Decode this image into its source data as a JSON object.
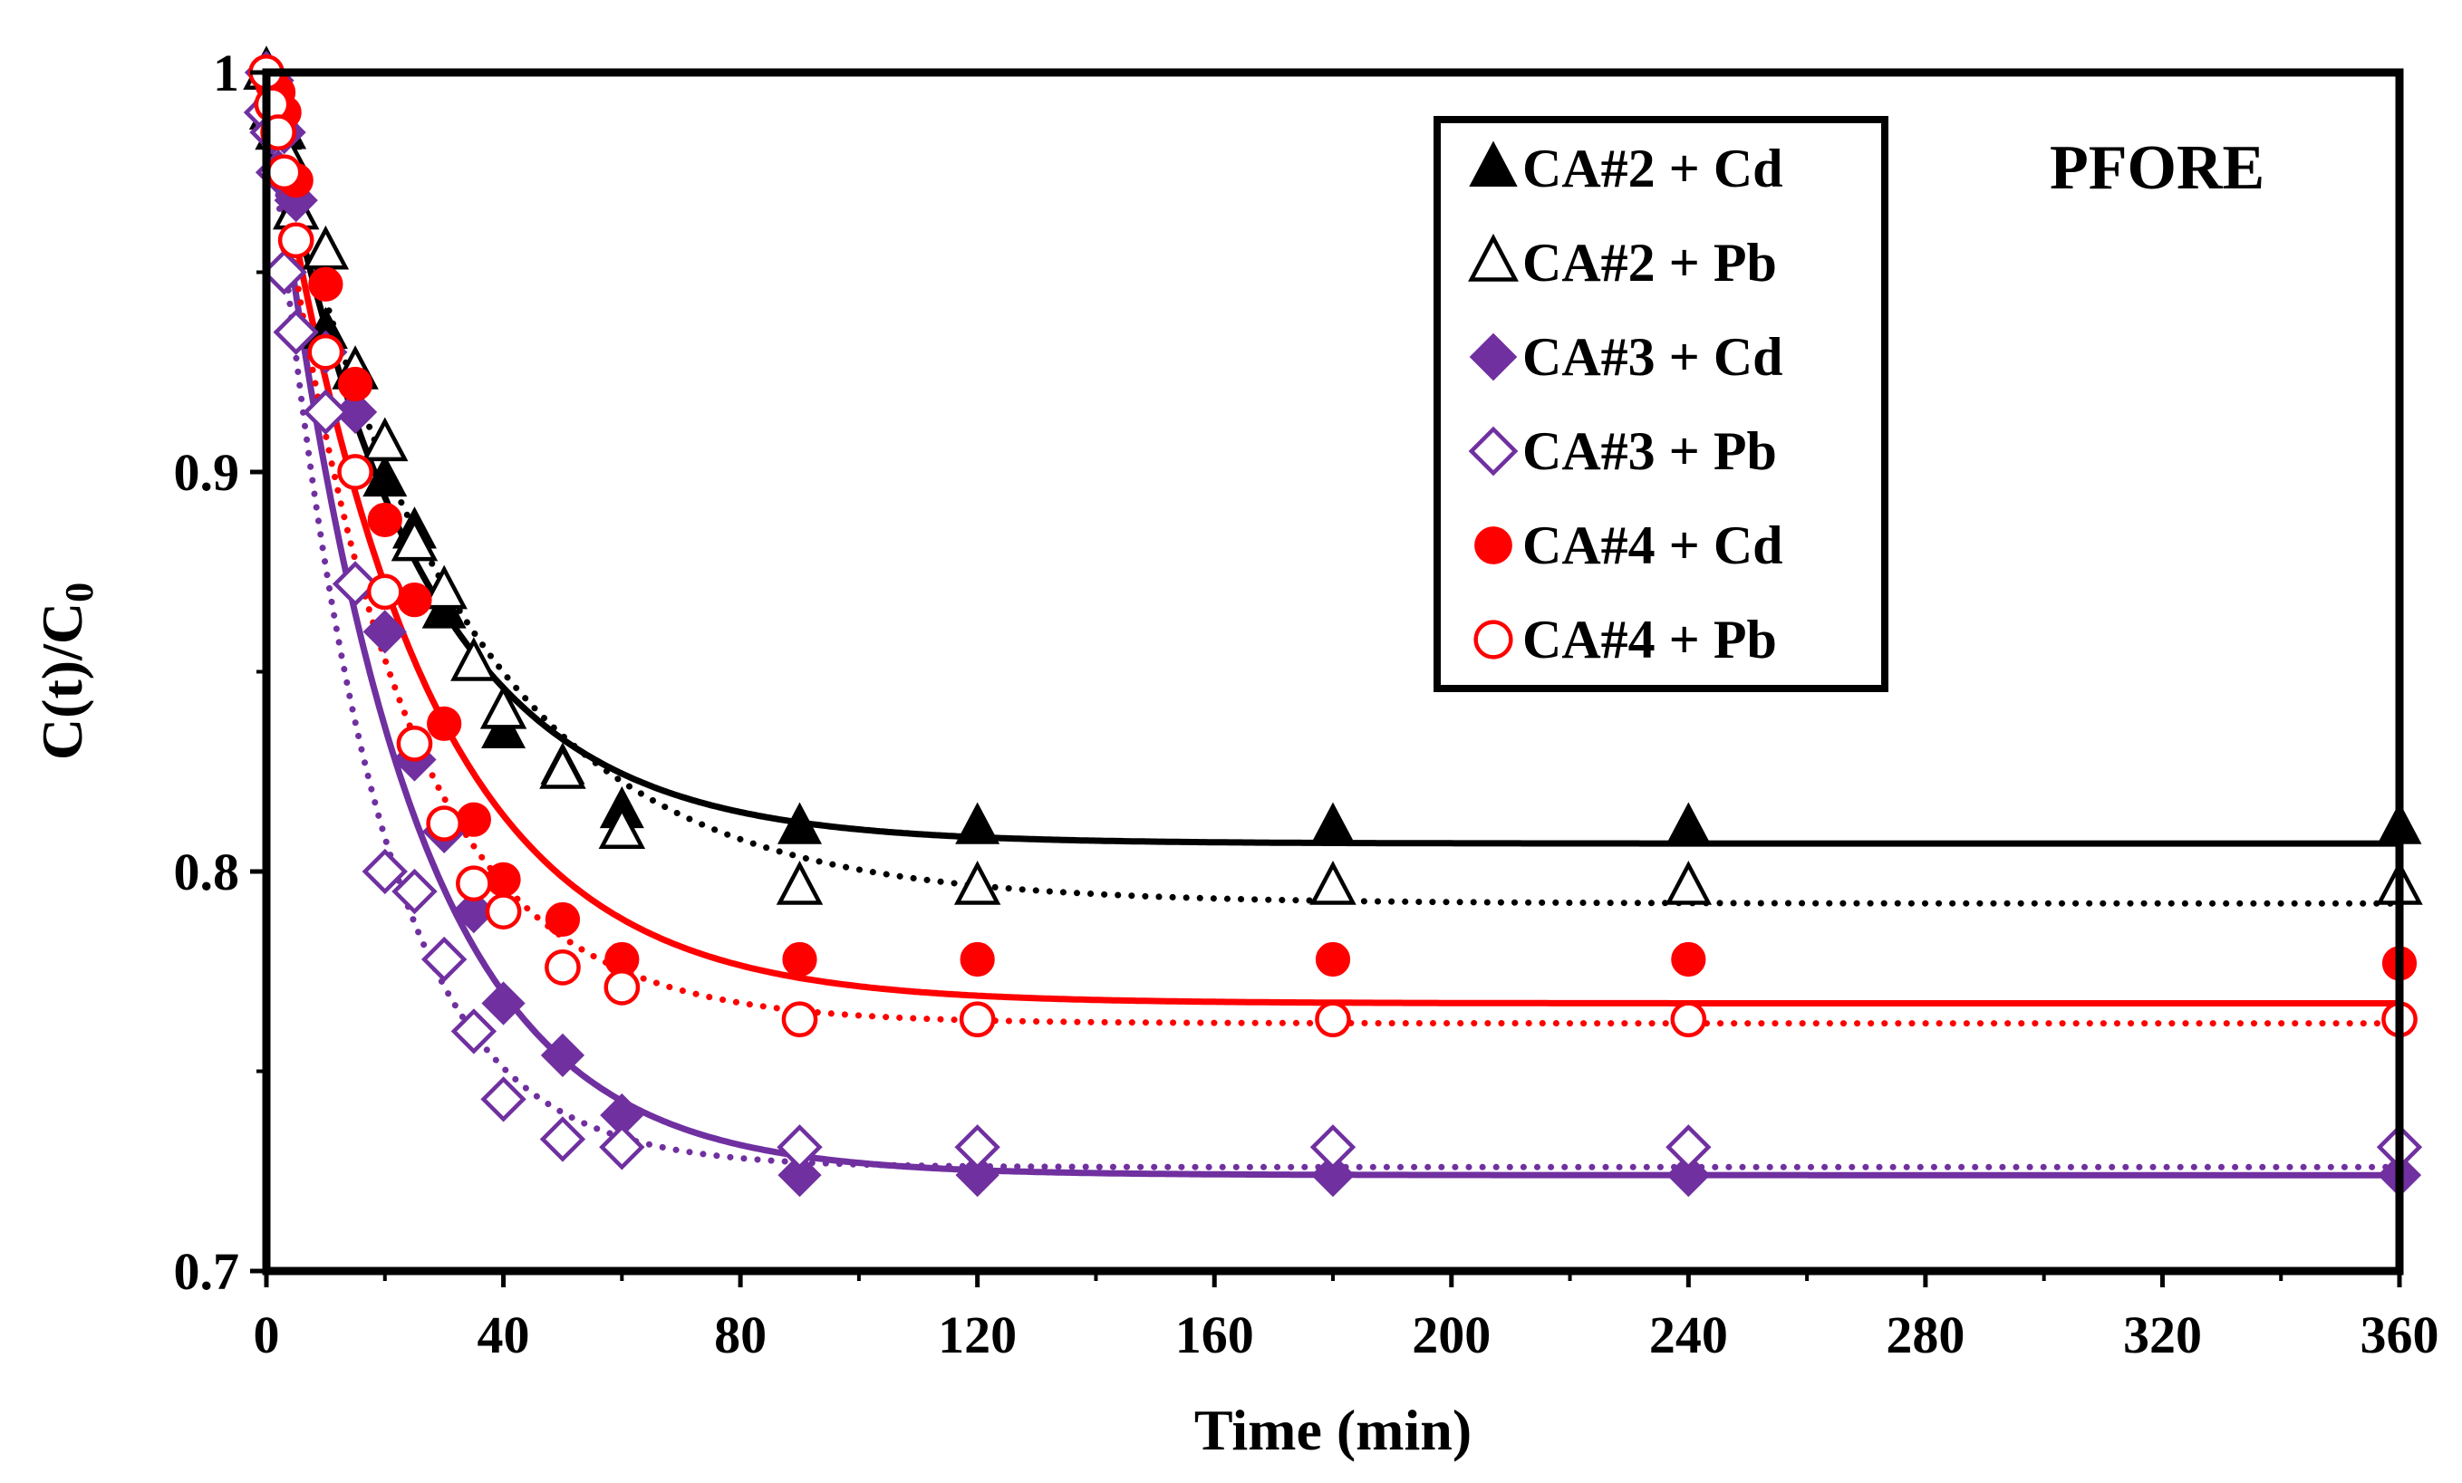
{
  "chart_data": {
    "type": "scatter",
    "title": "",
    "annotation": "PFORE",
    "xlabel": "Time (min)",
    "ylabel_main": "C(t)/C",
    "ylabel_sub": "0",
    "xlim": [
      0,
      360
    ],
    "ylim": [
      0.7,
      1.0
    ],
    "x_ticks": [
      0,
      40,
      80,
      120,
      160,
      200,
      240,
      280,
      320,
      360
    ],
    "x_tick_labels": [
      "0",
      "40",
      "80",
      "120",
      "160",
      "200",
      "240",
      "280",
      "320",
      "360"
    ],
    "y_ticks": [
      0.7,
      0.8,
      0.9,
      1.0
    ],
    "y_tick_labels": [
      "0.7",
      "0.8",
      "0.9",
      "1"
    ],
    "grid": false,
    "legend_position": "top-right",
    "series": [
      {
        "name": "CA#2 + Cd",
        "color": "#000000",
        "marker": "triangle",
        "filled": true,
        "x": [
          0,
          1,
          2,
          3,
          5,
          10,
          15,
          20,
          25,
          30,
          35,
          40,
          50,
          60,
          90,
          120,
          180,
          240,
          360
        ],
        "y": [
          1.0,
          0.995,
          0.99,
          0.985,
          0.965,
          0.935,
          0.925,
          0.898,
          0.885,
          0.865,
          0.852,
          0.835,
          0.826,
          0.815,
          0.811,
          0.811,
          0.811,
          0.811,
          0.811
        ],
        "fit": {
          "line": "solid",
          "qe": 0.807,
          "k": 0.04
        }
      },
      {
        "name": "CA#2 + Pb",
        "color": "#000000",
        "marker": "triangle",
        "filled": false,
        "x": [
          0,
          1,
          2,
          3,
          5,
          10,
          15,
          20,
          25,
          30,
          35,
          40,
          50,
          60,
          90,
          120,
          180,
          240,
          360
        ],
        "y": [
          1.0,
          0.99,
          0.985,
          0.98,
          0.965,
          0.955,
          0.925,
          0.907,
          0.882,
          0.87,
          0.852,
          0.84,
          0.825,
          0.81,
          0.796,
          0.796,
          0.796,
          0.796,
          0.796
        ],
        "fit": {
          "line": "dotted",
          "qe": 0.792,
          "k": 0.032
        }
      },
      {
        "name": "CA#3 + Cd",
        "color": "#7030A0",
        "marker": "diamond",
        "filled": true,
        "x": [
          0,
          1,
          2,
          3,
          5,
          10,
          15,
          20,
          25,
          30,
          35,
          40,
          50,
          60,
          90,
          120,
          180,
          240,
          360
        ],
        "y": [
          1.0,
          0.998,
          0.99,
          0.985,
          0.968,
          0.93,
          0.915,
          0.86,
          0.828,
          0.81,
          0.79,
          0.767,
          0.754,
          0.739,
          0.724,
          0.724,
          0.724,
          0.724,
          0.724
        ],
        "fit": {
          "line": "solid",
          "qe": 0.724,
          "k": 0.045
        }
      },
      {
        "name": "CA#3 + Pb",
        "color": "#7030A0",
        "marker": "diamond",
        "filled": false,
        "x": [
          0,
          1,
          2,
          3,
          5,
          10,
          15,
          20,
          25,
          30,
          35,
          40,
          50,
          60,
          90,
          120,
          180,
          240,
          360
        ],
        "y": [
          0.99,
          0.985,
          0.975,
          0.95,
          0.935,
          0.915,
          0.872,
          0.8,
          0.795,
          0.778,
          0.76,
          0.743,
          0.733,
          0.731,
          0.731,
          0.731,
          0.731,
          0.731,
          0.731
        ],
        "fit": {
          "line": "dotted",
          "qe": 0.726,
          "k": 0.06
        }
      },
      {
        "name": "CA#4 + Cd",
        "color": "#FF0000",
        "marker": "circle",
        "filled": true,
        "x": [
          0,
          1,
          2,
          3,
          5,
          10,
          15,
          20,
          25,
          30,
          35,
          40,
          50,
          60,
          90,
          120,
          180,
          240,
          360
        ],
        "y": [
          1.0,
          0.997,
          0.995,
          0.99,
          0.973,
          0.947,
          0.922,
          0.888,
          0.868,
          0.837,
          0.813,
          0.798,
          0.788,
          0.778,
          0.778,
          0.778,
          0.778,
          0.778,
          0.777
        ],
        "fit": {
          "line": "solid",
          "qe": 0.767,
          "k": 0.04
        }
      },
      {
        "name": "CA#4 + Pb",
        "color": "#FF0000",
        "marker": "circle",
        "filled": false,
        "x": [
          0,
          1,
          2,
          3,
          5,
          10,
          15,
          20,
          25,
          30,
          35,
          40,
          50,
          60,
          90,
          120,
          180,
          240,
          360
        ],
        "y": [
          1.0,
          0.992,
          0.985,
          0.975,
          0.958,
          0.93,
          0.9,
          0.87,
          0.832,
          0.812,
          0.797,
          0.79,
          0.776,
          0.771,
          0.763,
          0.763,
          0.763,
          0.763,
          0.763
        ],
        "fit": {
          "line": "dotted",
          "qe": 0.762,
          "k": 0.048
        }
      }
    ]
  }
}
